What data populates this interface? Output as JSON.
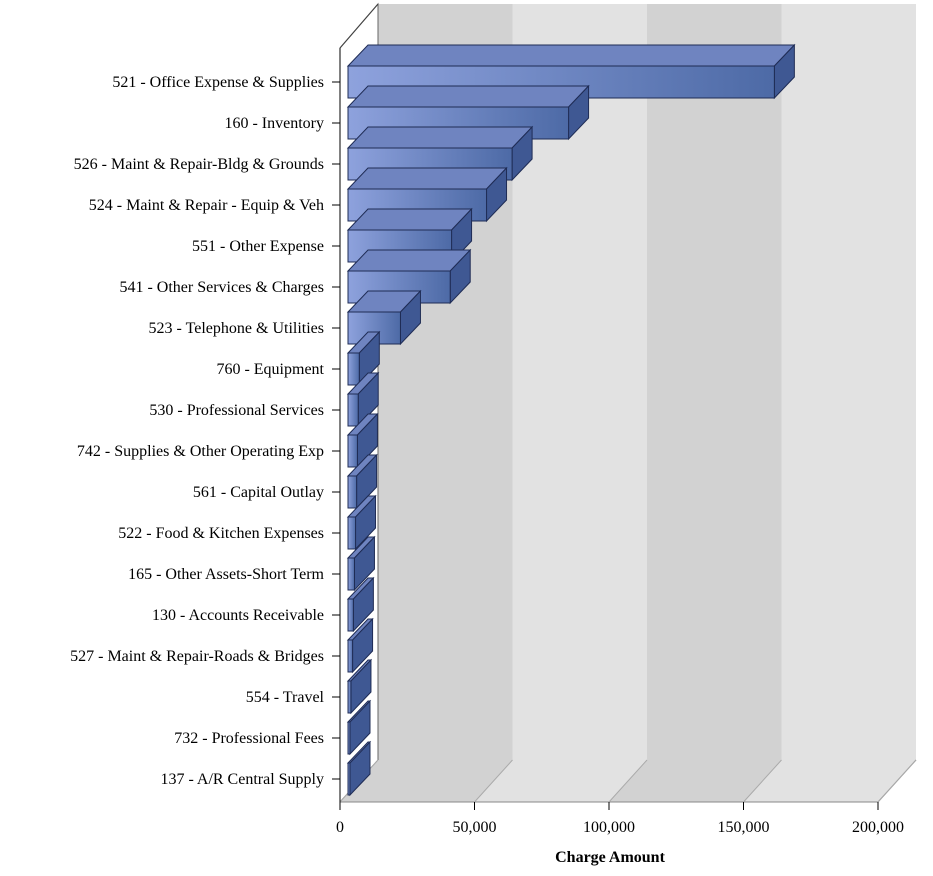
{
  "chart_data": {
    "type": "bar",
    "orientation": "horizontal",
    "style": "3d",
    "title": "",
    "xlabel": "Charge Amount",
    "ylabel": "",
    "xlim": [
      0,
      200000
    ],
    "x_ticks": [
      0,
      50000,
      100000,
      150000,
      200000
    ],
    "x_tick_labels": [
      "0",
      "50,000",
      "100,000",
      "150,000",
      "200,000"
    ],
    "grid": "vertical bands",
    "legend": "none",
    "colors": {
      "bar_front_light": "#8ea2dd",
      "bar_front_dark": "#4d6aa6",
      "bar_top": "#6f84c0",
      "bar_side": "#3f5893",
      "bar_edge": "#1f2c55",
      "band_dark": "#d2d2d2",
      "band_light": "#e2e2e2"
    },
    "categories": [
      "521 - Office Expense & Supplies",
      "160 - Inventory",
      "526 - Maint & Repair-Bldg & Grounds",
      "524 - Maint & Repair - Equip & Veh",
      "551 - Other Expense",
      "541 - Other Services & Charges",
      "523 - Telephone & Utilities",
      "760 - Equipment",
      "530 - Professional Services",
      "742 - Supplies & Other Operating Exp",
      "561 - Capital Outlay",
      "522 - Food & Kitchen Expenses",
      "165 - Other Assets-Short Term",
      "130 - Accounts Receivable",
      "527 - Maint & Repair-Roads & Bridges",
      "554 - Travel",
      "732 - Professional Fees",
      "137 - A/R Central Supply"
    ],
    "values": [
      158500,
      82000,
      61000,
      51500,
      38500,
      38000,
      19500,
      4200,
      3800,
      3500,
      3200,
      2800,
      2400,
      2000,
      1700,
      1100,
      600,
      150
    ]
  }
}
